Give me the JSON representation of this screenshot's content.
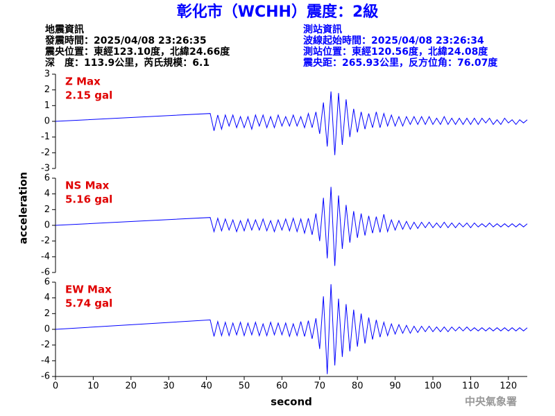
{
  "header": {
    "title": "彰化市（WCHH）震度：2級",
    "info_left": [
      "地震資訊",
      "發震時間：2025/04/08 23:26:35",
      "震央位置：東經123.10度，北緯24.66度",
      "深　度：113.9公里，芮氏規模：6.1"
    ],
    "info_right": [
      "測站資訊",
      "波線起始時間：2025/04/08 23:26:34",
      "測站位置：東經120.56度，北緯24.08度",
      "震央距：265.93公里，反方位角：76.07度"
    ]
  },
  "ylabel": "acceleration",
  "credit": "中央氣象署",
  "chart_data": [
    {
      "type": "line",
      "name": "Z Max",
      "max_text": "2.15 gal",
      "color": "#0000ff",
      "xlim": [
        0,
        125
      ],
      "ylim": [
        -3,
        3
      ],
      "yticks": [
        -3,
        -2,
        -1,
        0,
        1,
        2,
        3
      ],
      "x": [
        0,
        41,
        42,
        43,
        44,
        45,
        46,
        47,
        48,
        49,
        50,
        51,
        52,
        53,
        54,
        55,
        56,
        57,
        58,
        59,
        60,
        61,
        62,
        63,
        64,
        65,
        66,
        67,
        68,
        69,
        70,
        71,
        72,
        73,
        74,
        75,
        76,
        77,
        78,
        79,
        80,
        81,
        82,
        83,
        84,
        85,
        86,
        87,
        88,
        89,
        90,
        91,
        92,
        93,
        94,
        95,
        96,
        97,
        98,
        99,
        100,
        101,
        102,
        103,
        104,
        105,
        106,
        107,
        108,
        109,
        110,
        111,
        112,
        113,
        114,
        115,
        116,
        117,
        118,
        119,
        120,
        121,
        122,
        123,
        124,
        125
      ],
      "values": [
        0,
        0.5,
        -0.6,
        0.4,
        -0.5,
        0.4,
        -0.3,
        0.4,
        -0.4,
        0.3,
        -0.4,
        0.3,
        -0.5,
        0.4,
        -0.3,
        0.4,
        -0.4,
        0.3,
        -0.4,
        0.4,
        -0.3,
        0.3,
        -0.3,
        0.4,
        -0.3,
        0.3,
        -0.4,
        0.5,
        -0.4,
        0.6,
        -0.8,
        1.2,
        -1.6,
        1.9,
        -2.15,
        1.8,
        -1.5,
        1.4,
        -1.0,
        0.8,
        -0.7,
        0.6,
        -0.5,
        0.5,
        -0.4,
        0.6,
        -0.4,
        0.5,
        -0.3,
        0.4,
        -0.3,
        0.3,
        -0.3,
        0.3,
        -0.2,
        0.3,
        -0.2,
        0.3,
        -0.2,
        0.3,
        -0.2,
        0.2,
        -0.2,
        0.3,
        -0.2,
        0.2,
        -0.2,
        0.2,
        -0.2,
        0.2,
        -0.2,
        0.2,
        -0.2,
        0.2,
        -0.1,
        0.2,
        -0.2,
        0.1,
        -0.2,
        0.2,
        -0.1,
        0.1,
        -0.2,
        0.1,
        -0.1,
        0.1
      ]
    },
    {
      "type": "line",
      "name": "NS Max",
      "max_text": "5.16 gal",
      "color": "#0000ff",
      "xlim": [
        0,
        125
      ],
      "ylim": [
        -6,
        6
      ],
      "yticks": [
        -6,
        -4,
        -2,
        0,
        2,
        4,
        6
      ],
      "x": [
        0,
        41,
        42,
        43,
        44,
        45,
        46,
        47,
        48,
        49,
        50,
        51,
        52,
        53,
        54,
        55,
        56,
        57,
        58,
        59,
        60,
        61,
        62,
        63,
        64,
        65,
        66,
        67,
        68,
        69,
        70,
        71,
        72,
        73,
        74,
        75,
        76,
        77,
        78,
        79,
        80,
        81,
        82,
        83,
        84,
        85,
        86,
        87,
        88,
        89,
        90,
        91,
        92,
        93,
        94,
        95,
        96,
        97,
        98,
        99,
        100,
        101,
        102,
        103,
        104,
        105,
        106,
        107,
        108,
        109,
        110,
        111,
        112,
        113,
        114,
        115,
        116,
        117,
        118,
        119,
        120,
        121,
        122,
        123,
        124,
        125
      ],
      "values": [
        0,
        1.0,
        -0.8,
        0.9,
        -0.7,
        0.8,
        -0.6,
        0.7,
        -0.8,
        0.6,
        -0.7,
        0.8,
        -0.6,
        0.7,
        -0.6,
        0.8,
        -0.7,
        0.6,
        -0.8,
        0.7,
        -0.6,
        0.8,
        -0.7,
        0.9,
        -0.8,
        0.8,
        -1.0,
        0.9,
        -1.2,
        1.5,
        -2.0,
        3.5,
        -4.2,
        4.9,
        -5.16,
        3.8,
        -3.0,
        2.6,
        -2.2,
        1.8,
        -1.6,
        1.5,
        -1.3,
        1.2,
        -1.0,
        1.1,
        -0.9,
        1.4,
        -0.8,
        0.7,
        -0.6,
        0.6,
        -0.5,
        0.5,
        -0.5,
        0.4,
        -0.4,
        0.4,
        -0.3,
        0.4,
        -0.3,
        0.3,
        -0.3,
        0.4,
        -0.3,
        0.3,
        -0.3,
        0.3,
        -0.2,
        0.3,
        -0.3,
        0.3,
        -0.2,
        0.2,
        -0.2,
        0.3,
        -0.2,
        0.2,
        -0.2,
        0.2,
        -0.2,
        0.2,
        -0.2,
        0.2,
        -0.2,
        0.2
      ]
    },
    {
      "type": "line",
      "name": "EW Max",
      "max_text": "5.74 gal",
      "color": "#0000ff",
      "xlim": [
        0,
        125
      ],
      "ylim": [
        -6,
        6
      ],
      "yticks": [
        -6,
        -4,
        -2,
        0,
        2,
        4,
        6
      ],
      "xticks": [
        0,
        10,
        20,
        30,
        40,
        50,
        60,
        70,
        80,
        90,
        100,
        110,
        120
      ],
      "xlabel": "second",
      "x": [
        0,
        41,
        42,
        43,
        44,
        45,
        46,
        47,
        48,
        49,
        50,
        51,
        52,
        53,
        54,
        55,
        56,
        57,
        58,
        59,
        60,
        61,
        62,
        63,
        64,
        65,
        66,
        67,
        68,
        69,
        70,
        71,
        72,
        73,
        74,
        75,
        76,
        77,
        78,
        79,
        80,
        81,
        82,
        83,
        84,
        85,
        86,
        87,
        88,
        89,
        90,
        91,
        92,
        93,
        94,
        95,
        96,
        97,
        98,
        99,
        100,
        101,
        102,
        103,
        104,
        105,
        106,
        107,
        108,
        109,
        110,
        111,
        112,
        113,
        114,
        115,
        116,
        117,
        118,
        119,
        120,
        121,
        122,
        123,
        124,
        125
      ],
      "values": [
        0,
        1.2,
        -0.9,
        1.0,
        -0.8,
        0.9,
        -0.8,
        0.8,
        -0.7,
        0.9,
        -0.8,
        0.8,
        -0.7,
        0.9,
        -0.8,
        0.7,
        -0.8,
        0.9,
        -0.7,
        0.8,
        -0.7,
        0.8,
        -0.9,
        0.7,
        -0.8,
        1.0,
        -0.9,
        1.1,
        -1.2,
        1.4,
        -2.5,
        4.2,
        -5.7,
        5.74,
        -4.6,
        3.9,
        -3.5,
        3.2,
        -2.8,
        2.5,
        -2.2,
        2.0,
        -1.8,
        1.5,
        -1.3,
        1.2,
        -1.0,
        0.9,
        -0.8,
        0.7,
        -0.6,
        0.6,
        -0.5,
        0.5,
        -0.5,
        0.4,
        -0.4,
        0.4,
        -0.3,
        0.4,
        -0.3,
        0.3,
        -0.3,
        0.3,
        -0.3,
        0.3,
        -0.2,
        0.3,
        -0.2,
        0.3,
        -0.2,
        0.2,
        -0.2,
        0.2,
        -0.2,
        0.2,
        -0.2,
        0.2,
        -0.2,
        0.2,
        -0.2,
        0.2,
        -0.2,
        0.2,
        -0.2,
        0.2
      ]
    }
  ]
}
